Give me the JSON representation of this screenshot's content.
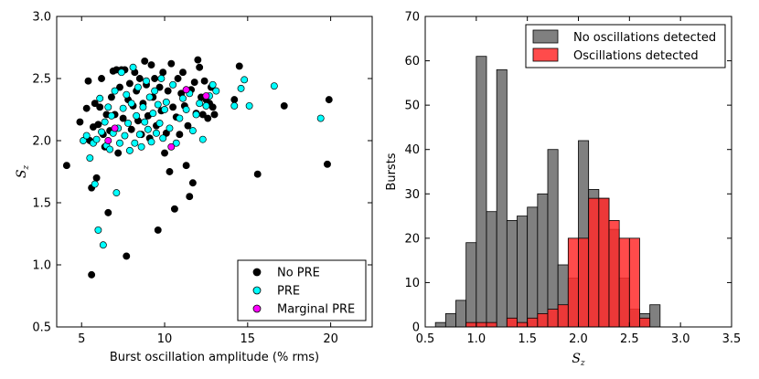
{
  "chart_data": [
    {
      "type": "scatter",
      "xlabel": "Burst oscillation amplitude (% rms)",
      "ylabel_symbol": "S",
      "ylabel_subscript": "z",
      "xlim": [
        3.5,
        22.5
      ],
      "ylim": [
        0.5,
        3.0
      ],
      "xticks": [
        5,
        10,
        15,
        20
      ],
      "yticks": [
        0.5,
        1.0,
        1.5,
        2.0,
        2.5,
        3.0
      ],
      "legend_position": "lower-right",
      "series": [
        {
          "name": "No PRE",
          "color": "#000000",
          "points": [
            [
              4.1,
              1.8
            ],
            [
              4.9,
              2.15
            ],
            [
              5.3,
              2.26
            ],
            [
              5.4,
              2.48
            ],
            [
              5.5,
              2.0
            ],
            [
              5.6,
              1.62
            ],
            [
              5.6,
              0.92
            ],
            [
              5.7,
              2.11
            ],
            [
              5.8,
              2.3
            ],
            [
              5.9,
              1.7
            ],
            [
              6.0,
              2.13
            ],
            [
              6.1,
              2.27
            ],
            [
              6.2,
              2.5
            ],
            [
              6.3,
              2.05
            ],
            [
              6.4,
              1.95
            ],
            [
              6.5,
              2.21
            ],
            [
              6.6,
              1.42
            ],
            [
              6.7,
              2.08
            ],
            [
              6.8,
              2.35
            ],
            [
              6.9,
              2.56
            ],
            [
              7.0,
              2.21
            ],
            [
              7.1,
              2.57
            ],
            [
              7.2,
              1.9
            ],
            [
              7.3,
              2.43
            ],
            [
              7.4,
              2.57
            ],
            [
              7.5,
              2.18
            ],
            [
              7.6,
              2.57
            ],
            [
              7.7,
              1.07
            ],
            [
              7.8,
              2.33
            ],
            [
              7.9,
              2.46
            ],
            [
              8.0,
              2.09
            ],
            [
              8.1,
              2.28
            ],
            [
              8.2,
              2.55
            ],
            [
              8.3,
              2.4
            ],
            [
              8.4,
              2.16
            ],
            [
              8.5,
              2.5
            ],
            [
              8.6,
              2.05
            ],
            [
              8.7,
              2.3
            ],
            [
              8.8,
              2.64
            ],
            [
              8.9,
              2.45
            ],
            [
              9.0,
              2.2
            ],
            [
              9.1,
              2.02
            ],
            [
              9.2,
              2.61
            ],
            [
              9.3,
              2.35
            ],
            [
              9.4,
              2.5
            ],
            [
              9.5,
              2.12
            ],
            [
              9.6,
              1.28
            ],
            [
              9.7,
              2.43
            ],
            [
              9.8,
              2.24
            ],
            [
              9.9,
              2.55
            ],
            [
              10.0,
              1.9
            ],
            [
              10.1,
              2.06
            ],
            [
              10.2,
              2.4
            ],
            [
              10.3,
              1.75
            ],
            [
              10.4,
              2.62
            ],
            [
              10.5,
              2.27
            ],
            [
              10.6,
              1.45
            ],
            [
              10.7,
              2.19
            ],
            [
              10.8,
              2.5
            ],
            [
              10.9,
              2.05
            ],
            [
              11.0,
              2.38
            ],
            [
              11.1,
              2.55
            ],
            [
              11.2,
              2.28
            ],
            [
              11.3,
              1.8
            ],
            [
              11.4,
              2.12
            ],
            [
              11.5,
              1.55
            ],
            [
              11.6,
              2.41
            ],
            [
              11.7,
              1.66
            ],
            [
              11.8,
              2.47
            ],
            [
              11.9,
              2.22
            ],
            [
              12.0,
              2.65
            ],
            [
              12.1,
              2.59
            ],
            [
              12.2,
              2.35
            ],
            [
              12.3,
              2.21
            ],
            [
              12.4,
              2.48
            ],
            [
              12.5,
              2.33
            ],
            [
              12.6,
              2.18
            ],
            [
              12.7,
              2.3
            ],
            [
              12.8,
              2.43
            ],
            [
              12.9,
              2.27
            ],
            [
              13.0,
              2.21
            ],
            [
              14.2,
              2.33
            ],
            [
              14.5,
              2.6
            ],
            [
              15.6,
              1.73
            ],
            [
              17.2,
              2.28
            ],
            [
              19.8,
              1.81
            ],
            [
              19.9,
              2.33
            ]
          ]
        },
        {
          "name": "PRE",
          "color": "#00ffff",
          "points": [
            [
              5.1,
              2.0
            ],
            [
              5.3,
              2.04
            ],
            [
              5.5,
              1.86
            ],
            [
              5.7,
              1.98
            ],
            [
              5.8,
              1.65
            ],
            [
              5.9,
              2.01
            ],
            [
              6.0,
              1.28
            ],
            [
              6.1,
              2.34
            ],
            [
              6.2,
              2.07
            ],
            [
              6.3,
              1.16
            ],
            [
              6.4,
              2.15
            ],
            [
              6.5,
              1.96
            ],
            [
              6.6,
              2.27
            ],
            [
              6.7,
              1.93
            ],
            [
              6.8,
              2.2
            ],
            [
              6.9,
              2.06
            ],
            [
              7.0,
              2.4
            ],
            [
              7.1,
              1.58
            ],
            [
              7.2,
              2.1
            ],
            [
              7.3,
              1.98
            ],
            [
              7.4,
              2.55
            ],
            [
              7.5,
              2.26
            ],
            [
              7.6,
              2.04
            ],
            [
              7.7,
              2.37
            ],
            [
              7.8,
              2.14
            ],
            [
              7.9,
              1.92
            ],
            [
              8.0,
              2.3
            ],
            [
              8.1,
              2.59
            ],
            [
              8.2,
              1.98
            ],
            [
              8.3,
              2.2
            ],
            [
              8.4,
              2.43
            ],
            [
              8.5,
              2.05
            ],
            [
              8.6,
              1.95
            ],
            [
              8.7,
              2.27
            ],
            [
              8.8,
              2.15
            ],
            [
              8.9,
              2.48
            ],
            [
              9.0,
              2.09
            ],
            [
              9.1,
              2.35
            ],
            [
              9.2,
              1.99
            ],
            [
              9.3,
              2.22
            ],
            [
              9.4,
              2.4
            ],
            [
              9.5,
              2.06
            ],
            [
              9.6,
              2.29
            ],
            [
              9.7,
              2.14
            ],
            [
              9.8,
              2.5
            ],
            [
              9.9,
              2.02
            ],
            [
              10.0,
              2.25
            ],
            [
              10.1,
              2.31
            ],
            [
              10.3,
              2.1
            ],
            [
              10.5,
              2.45
            ],
            [
              10.7,
              1.98
            ],
            [
              10.9,
              2.18
            ],
            [
              11.1,
              2.34
            ],
            [
              11.3,
              2.25
            ],
            [
              11.5,
              2.38
            ],
            [
              11.7,
              2.08
            ],
            [
              11.9,
              2.21
            ],
            [
              12.1,
              2.3
            ],
            [
              12.3,
              2.01
            ],
            [
              12.5,
              2.28
            ],
            [
              12.7,
              2.36
            ],
            [
              12.9,
              2.45
            ],
            [
              13.1,
              2.4
            ],
            [
              14.2,
              2.28
            ],
            [
              14.6,
              2.42
            ],
            [
              14.8,
              2.49
            ],
            [
              15.1,
              2.28
            ],
            [
              16.6,
              2.44
            ],
            [
              19.4,
              2.18
            ]
          ]
        },
        {
          "name": "Marginal PRE",
          "color": "#ff00ff",
          "points": [
            [
              6.6,
              2.0
            ],
            [
              7.0,
              2.1
            ],
            [
              10.4,
              1.95
            ],
            [
              11.3,
              2.41
            ],
            [
              12.5,
              2.36
            ]
          ]
        }
      ]
    },
    {
      "type": "histogram",
      "xlabel_symbol": "S",
      "xlabel_subscript": "z",
      "ylabel": "Bursts",
      "xlim": [
        0.5,
        3.5
      ],
      "ylim": [
        0,
        70
      ],
      "xticks": [
        0.5,
        1.0,
        1.5,
        2.0,
        2.5,
        3.0,
        3.5
      ],
      "yticks": [
        0,
        10,
        20,
        30,
        40,
        50,
        60,
        70
      ],
      "bin_width": 0.1,
      "legend_position": "top-right",
      "series": [
        {
          "name": "No oscillations detected",
          "color": "#808080",
          "bins": [
            [
              0.6,
              1
            ],
            [
              0.7,
              3
            ],
            [
              0.8,
              6
            ],
            [
              0.9,
              19
            ],
            [
              1.0,
              61
            ],
            [
              1.1,
              26
            ],
            [
              1.2,
              58
            ],
            [
              1.3,
              24
            ],
            [
              1.4,
              25
            ],
            [
              1.5,
              27
            ],
            [
              1.6,
              30
            ],
            [
              1.7,
              40
            ],
            [
              1.8,
              14
            ],
            [
              1.9,
              11
            ],
            [
              2.0,
              42
            ],
            [
              2.1,
              31
            ],
            [
              2.2,
              29
            ],
            [
              2.3,
              22
            ],
            [
              2.4,
              11
            ],
            [
              2.5,
              4
            ],
            [
              2.6,
              3
            ],
            [
              2.7,
              5
            ]
          ]
        },
        {
          "name": "Oscillations detected",
          "color": "#ff2b2b",
          "bins": [
            [
              0.9,
              1
            ],
            [
              1.0,
              1
            ],
            [
              1.1,
              1
            ],
            [
              1.2,
              0
            ],
            [
              1.3,
              2
            ],
            [
              1.4,
              1
            ],
            [
              1.5,
              2
            ],
            [
              1.6,
              3
            ],
            [
              1.7,
              4
            ],
            [
              1.8,
              5
            ],
            [
              1.9,
              20
            ],
            [
              2.0,
              20
            ],
            [
              2.1,
              29
            ],
            [
              2.2,
              29
            ],
            [
              2.3,
              24
            ],
            [
              2.4,
              20
            ],
            [
              2.5,
              20
            ],
            [
              2.6,
              2
            ]
          ]
        }
      ]
    }
  ]
}
